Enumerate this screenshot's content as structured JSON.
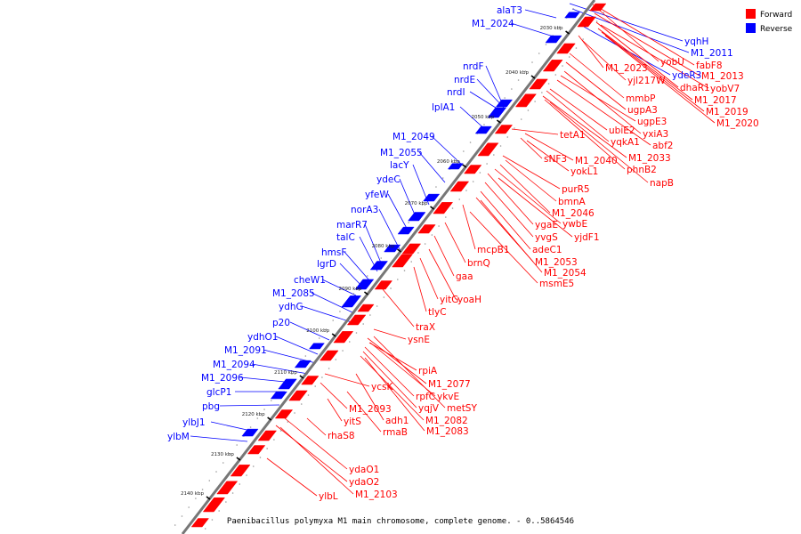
{
  "caption": "Paenibacillus polymyxa M1 main chromosome, complete genome. - 0..5864546",
  "legend": [
    {
      "label": "Forward",
      "color": "#ff0000"
    },
    {
      "label": "Reverse",
      "color": "#0000ff"
    }
  ],
  "colors": {
    "forward": "#ff0000",
    "reverse": "#0000ff",
    "backbone": "#777777"
  },
  "ticks": [
    "2030 kbp",
    "2040 kbp",
    "2050 kbp",
    "2060 kbp",
    "2070 kbp",
    "2080 kbp",
    "2090 kbp",
    "2100 kbp",
    "2110 kbp",
    "2120 kbp",
    "2130 kbp",
    "2140 kbp"
  ],
  "reverse_genes": [
    "alaT3",
    "M1_2024",
    "nrdF",
    "nrdE",
    "nrdI",
    "lplA1",
    "M1_2049",
    "M1_2055",
    "lacY",
    "ydeC",
    "yfeW",
    "norA3",
    "marR7",
    "talC",
    "hmsF",
    "lgrD",
    "cheW1",
    "M1_2085",
    "ydhG",
    "p20",
    "ydhO1",
    "M1_2091",
    "M1_2094",
    "M1_2096",
    "glcP1",
    "pbg",
    "ylbJ1",
    "ylbM",
    "yqhH",
    "M1_2011",
    "ydeR3"
  ],
  "forward_genes": [
    "fabF8",
    "yobU",
    "M1_2013",
    "M1_2023",
    "yjl217W",
    "dhaR1",
    "yobV7",
    "mmbP",
    "M1_2017",
    "ugpA3",
    "M1_2019",
    "ugpE3",
    "M1_2020",
    "ubiE2",
    "yxiA3",
    "tetA1",
    "yqkA1",
    "abf2",
    "sNF3",
    "M1_2040",
    "M1_2033",
    "yokL1",
    "phnB2",
    "napB",
    "purR5",
    "bmnA",
    "M1_2046",
    "ygaE",
    "ywbE",
    "yvgS",
    "yjdF1",
    "adeC1",
    "mcpB1",
    "M1_2053",
    "brnQ",
    "M1_2054",
    "gaa",
    "msmE5",
    "yitG",
    "yoaH",
    "tlyC",
    "traX",
    "ysnE",
    "rpiA",
    "M1_2077",
    "ycsK",
    "rpfC",
    "ykvE",
    "yqjV",
    "metSY",
    "M1_2093",
    "M1_2082",
    "adh1",
    "yitS",
    "rmaB",
    "M1_2083",
    "rhaS8",
    "ydaO1",
    "ydaO2",
    "ylbL",
    "M1_2103"
  ]
}
